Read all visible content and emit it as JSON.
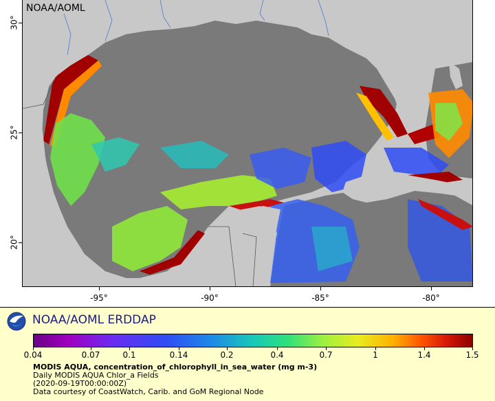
{
  "map": {
    "credit": "NOAA/AOML",
    "lon_ticks": [
      "-95°",
      "-90°",
      "-85°",
      "-80°"
    ],
    "lat_ticks": [
      "30°",
      "25°",
      "20°"
    ],
    "colors": {
      "land": "#c8c8c8",
      "nodata": "#7a7a7a"
    }
  },
  "legend": {
    "brand": "NOAA/AOML ERDDAP",
    "logo_icon": "noaa-logo-icon",
    "colorbar_labels": [
      "0.04",
      "0.07",
      "0.1",
      "0.14",
      "0.2",
      "0.4",
      "0.7",
      "1",
      "1.4",
      "1.5"
    ],
    "variable": "MODIS AQUA, concentration_of_chlorophyll_in_sea_water (mg m-3)",
    "dataset": "Daily MODIS AQUA Chlor_a Fields",
    "time": "(2020-09-19T00:00:00Z)",
    "courtesy": "Data courtesy of CoastWatch, Carib. and GoM Regional Node"
  }
}
